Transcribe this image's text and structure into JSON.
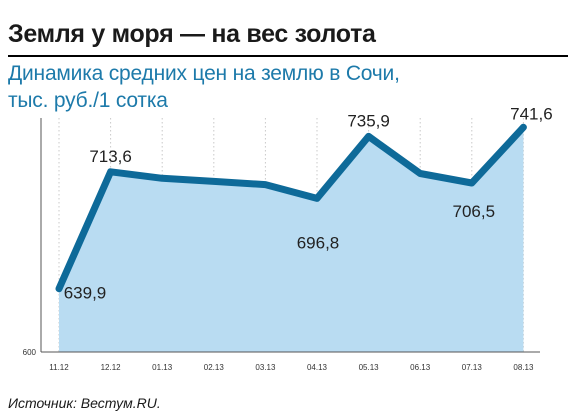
{
  "title": "Земля у моря — на вес золота",
  "subtitle_line1": "Динамика средних цен на землю в Сочи,",
  "subtitle_line2": "тыс. руб./1 сотка",
  "source": "Источник: Вестум.RU.",
  "colors": {
    "area": "#b9dcf2",
    "line": "#0e6a99",
    "subtitle": "#1d7aaa"
  },
  "chart_data": {
    "type": "area",
    "title": "Динамика средних цен на землю в Сочи,",
    "ylabel": "тыс. руб./1 сотка",
    "ylim": [
      600,
      750
    ],
    "y_tick_labels": [
      "600"
    ],
    "categories": [
      "11.12",
      "12.12",
      "01.13",
      "02.13",
      "03.13",
      "04.13",
      "05.13",
      "06.13",
      "07.13",
      "08.13"
    ],
    "values": [
      639.9,
      713.6,
      709.5,
      707.5,
      705.5,
      696.8,
      735.9,
      712.5,
      706.5,
      741.6
    ],
    "data_labels": [
      "639,9",
      "713,6",
      "",
      "",
      "",
      "696,8",
      "735,9",
      "",
      "706,5",
      "741,6"
    ]
  }
}
